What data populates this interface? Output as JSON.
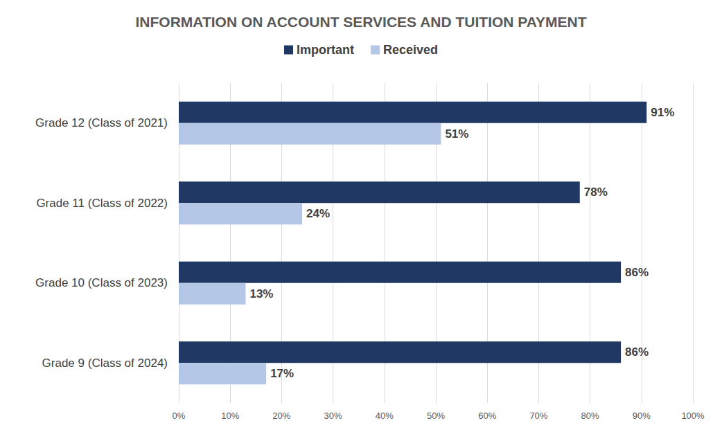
{
  "chart_data": {
    "type": "bar",
    "title": "INFORMATION ON ACCOUNT SERVICES AND TUITION PAYMENT",
    "orientation": "horizontal",
    "categories": [
      "Grade 12 (Class of 2021)",
      "Grade 11 (Class of 2022)",
      "Grade 10 (Class of 2023)",
      "Grade 9 (Class of 2024)"
    ],
    "series": [
      {
        "name": "Important",
        "color": "#203864",
        "values": [
          91,
          78,
          86,
          86
        ],
        "value_labels": [
          "91%",
          "78%",
          "86%",
          "86%"
        ]
      },
      {
        "name": "Received",
        "color": "#b4c7e7",
        "values": [
          51,
          24,
          13,
          17
        ],
        "value_labels": [
          "51%",
          "24%",
          "13%",
          "17%"
        ]
      }
    ],
    "xlim": [
      0,
      100
    ],
    "xticks": [
      {
        "value": 0,
        "label": "0%"
      },
      {
        "value": 10,
        "label": "10%"
      },
      {
        "value": 20,
        "label": "20%"
      },
      {
        "value": 30,
        "label": "30%"
      },
      {
        "value": 40,
        "label": "40%"
      },
      {
        "value": 50,
        "label": "50%"
      },
      {
        "value": 60,
        "label": "60%"
      },
      {
        "value": 70,
        "label": "70%"
      },
      {
        "value": 80,
        "label": "80%"
      },
      {
        "value": 90,
        "label": "90%"
      },
      {
        "value": 100,
        "label": "100%"
      }
    ],
    "grid": true,
    "legend": "top",
    "data_labels": true
  }
}
